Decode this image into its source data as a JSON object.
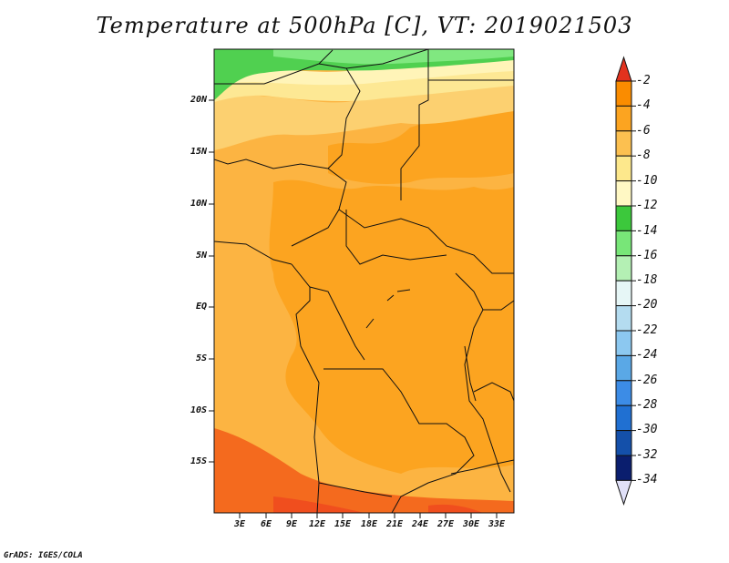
{
  "title": "Temperature at 500hPa [C], VT: 2019021503",
  "footer": "GrADS: IGES/COLA",
  "lat_ticks": [
    "20N",
    "15N",
    "10N",
    "5N",
    "EQ",
    "5S",
    "10S",
    "15S"
  ],
  "lon_ticks": [
    "3E",
    "6E",
    "9E",
    "12E",
    "15E",
    "18E",
    "21E",
    "24E",
    "27E",
    "30E",
    "33E"
  ],
  "colorbar": {
    "labels": [
      "-2",
      "-4",
      "-6",
      "-8",
      "-10",
      "-12",
      "-14",
      "-16",
      "-18",
      "-20",
      "-22",
      "-24",
      "-26",
      "-28",
      "-30",
      "-32",
      "-34"
    ],
    "colors": [
      "#f0501e",
      "#fa8c00",
      "#fca420",
      "#fcc050",
      "#fde88c",
      "#fff8c4",
      "#3cc83c",
      "#78e678",
      "#b4f0b4",
      "#e6f6f6",
      "#b4dcf0",
      "#8cc8f0",
      "#5aa8e6",
      "#3c8ce6",
      "#2070d2",
      "#1450aa",
      "#0a1e6e"
    ],
    "top_arrow_color": "#e2321e",
    "bottom_arrow_color": "#e0e0f8"
  },
  "field_colors": {
    "band_minus4_6": "#fca420",
    "band_minus6_8": "#fcb442",
    "band_minus8_10": "#fcd070",
    "band_minus10_12": "#fde894",
    "band_minus12_14": "#fff4b8",
    "band_minus14_16": "#50d050",
    "band_minus16_18": "#80e880",
    "band_warm": "#f46a1e",
    "band_warmest": "#f04e1e"
  }
}
